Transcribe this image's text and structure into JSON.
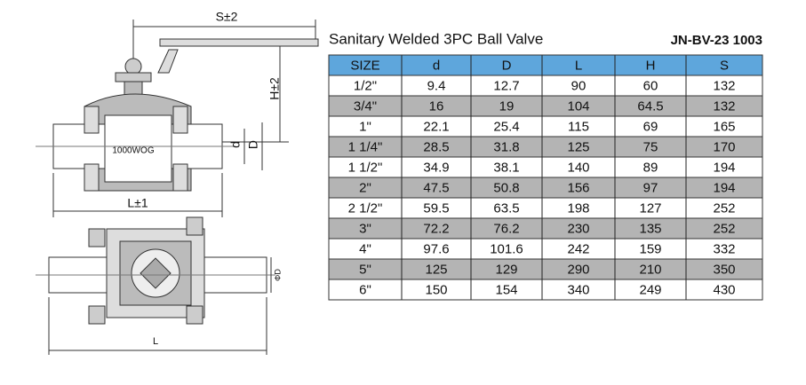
{
  "drawing": {
    "labels": {
      "s": "S±2",
      "h": "H±2",
      "d": "d",
      "D": "D",
      "rating": "1000WOG",
      "l1": "L±1",
      "phiD": "ΦD",
      "l": "L"
    }
  },
  "header": {
    "title": "Sanitary Welded 3PC  Ball Valve",
    "code": "JN-BV-23 1003"
  },
  "table": {
    "columns": [
      "SIZE",
      "d",
      "D",
      "L",
      "H",
      "S"
    ],
    "rows": [
      [
        "1/2\"",
        "9.4",
        "12.7",
        "90",
        "60",
        "132"
      ],
      [
        "3/4\"",
        "16",
        "19",
        "104",
        "64.5",
        "132"
      ],
      [
        "1\"",
        "22.1",
        "25.4",
        "115",
        "69",
        "165"
      ],
      [
        "1 1/4\"",
        "28.5",
        "31.8",
        "125",
        "75",
        "170"
      ],
      [
        "1 1/2\"",
        "34.9",
        "38.1",
        "140",
        "89",
        "194"
      ],
      [
        "2\"",
        "47.5",
        "50.8",
        "156",
        "97",
        "194"
      ],
      [
        "2 1/2\"",
        "59.5",
        "63.5",
        "198",
        "127",
        "252"
      ],
      [
        "3\"",
        "72.2",
        "76.2",
        "230",
        "135",
        "252"
      ],
      [
        "4\"",
        "97.6",
        "101.6",
        "242",
        "159",
        "332"
      ],
      [
        "5\"",
        "125",
        "129",
        "290",
        "210",
        "350"
      ],
      [
        "6\"",
        "150",
        "154",
        "340",
        "249",
        "430"
      ]
    ]
  }
}
